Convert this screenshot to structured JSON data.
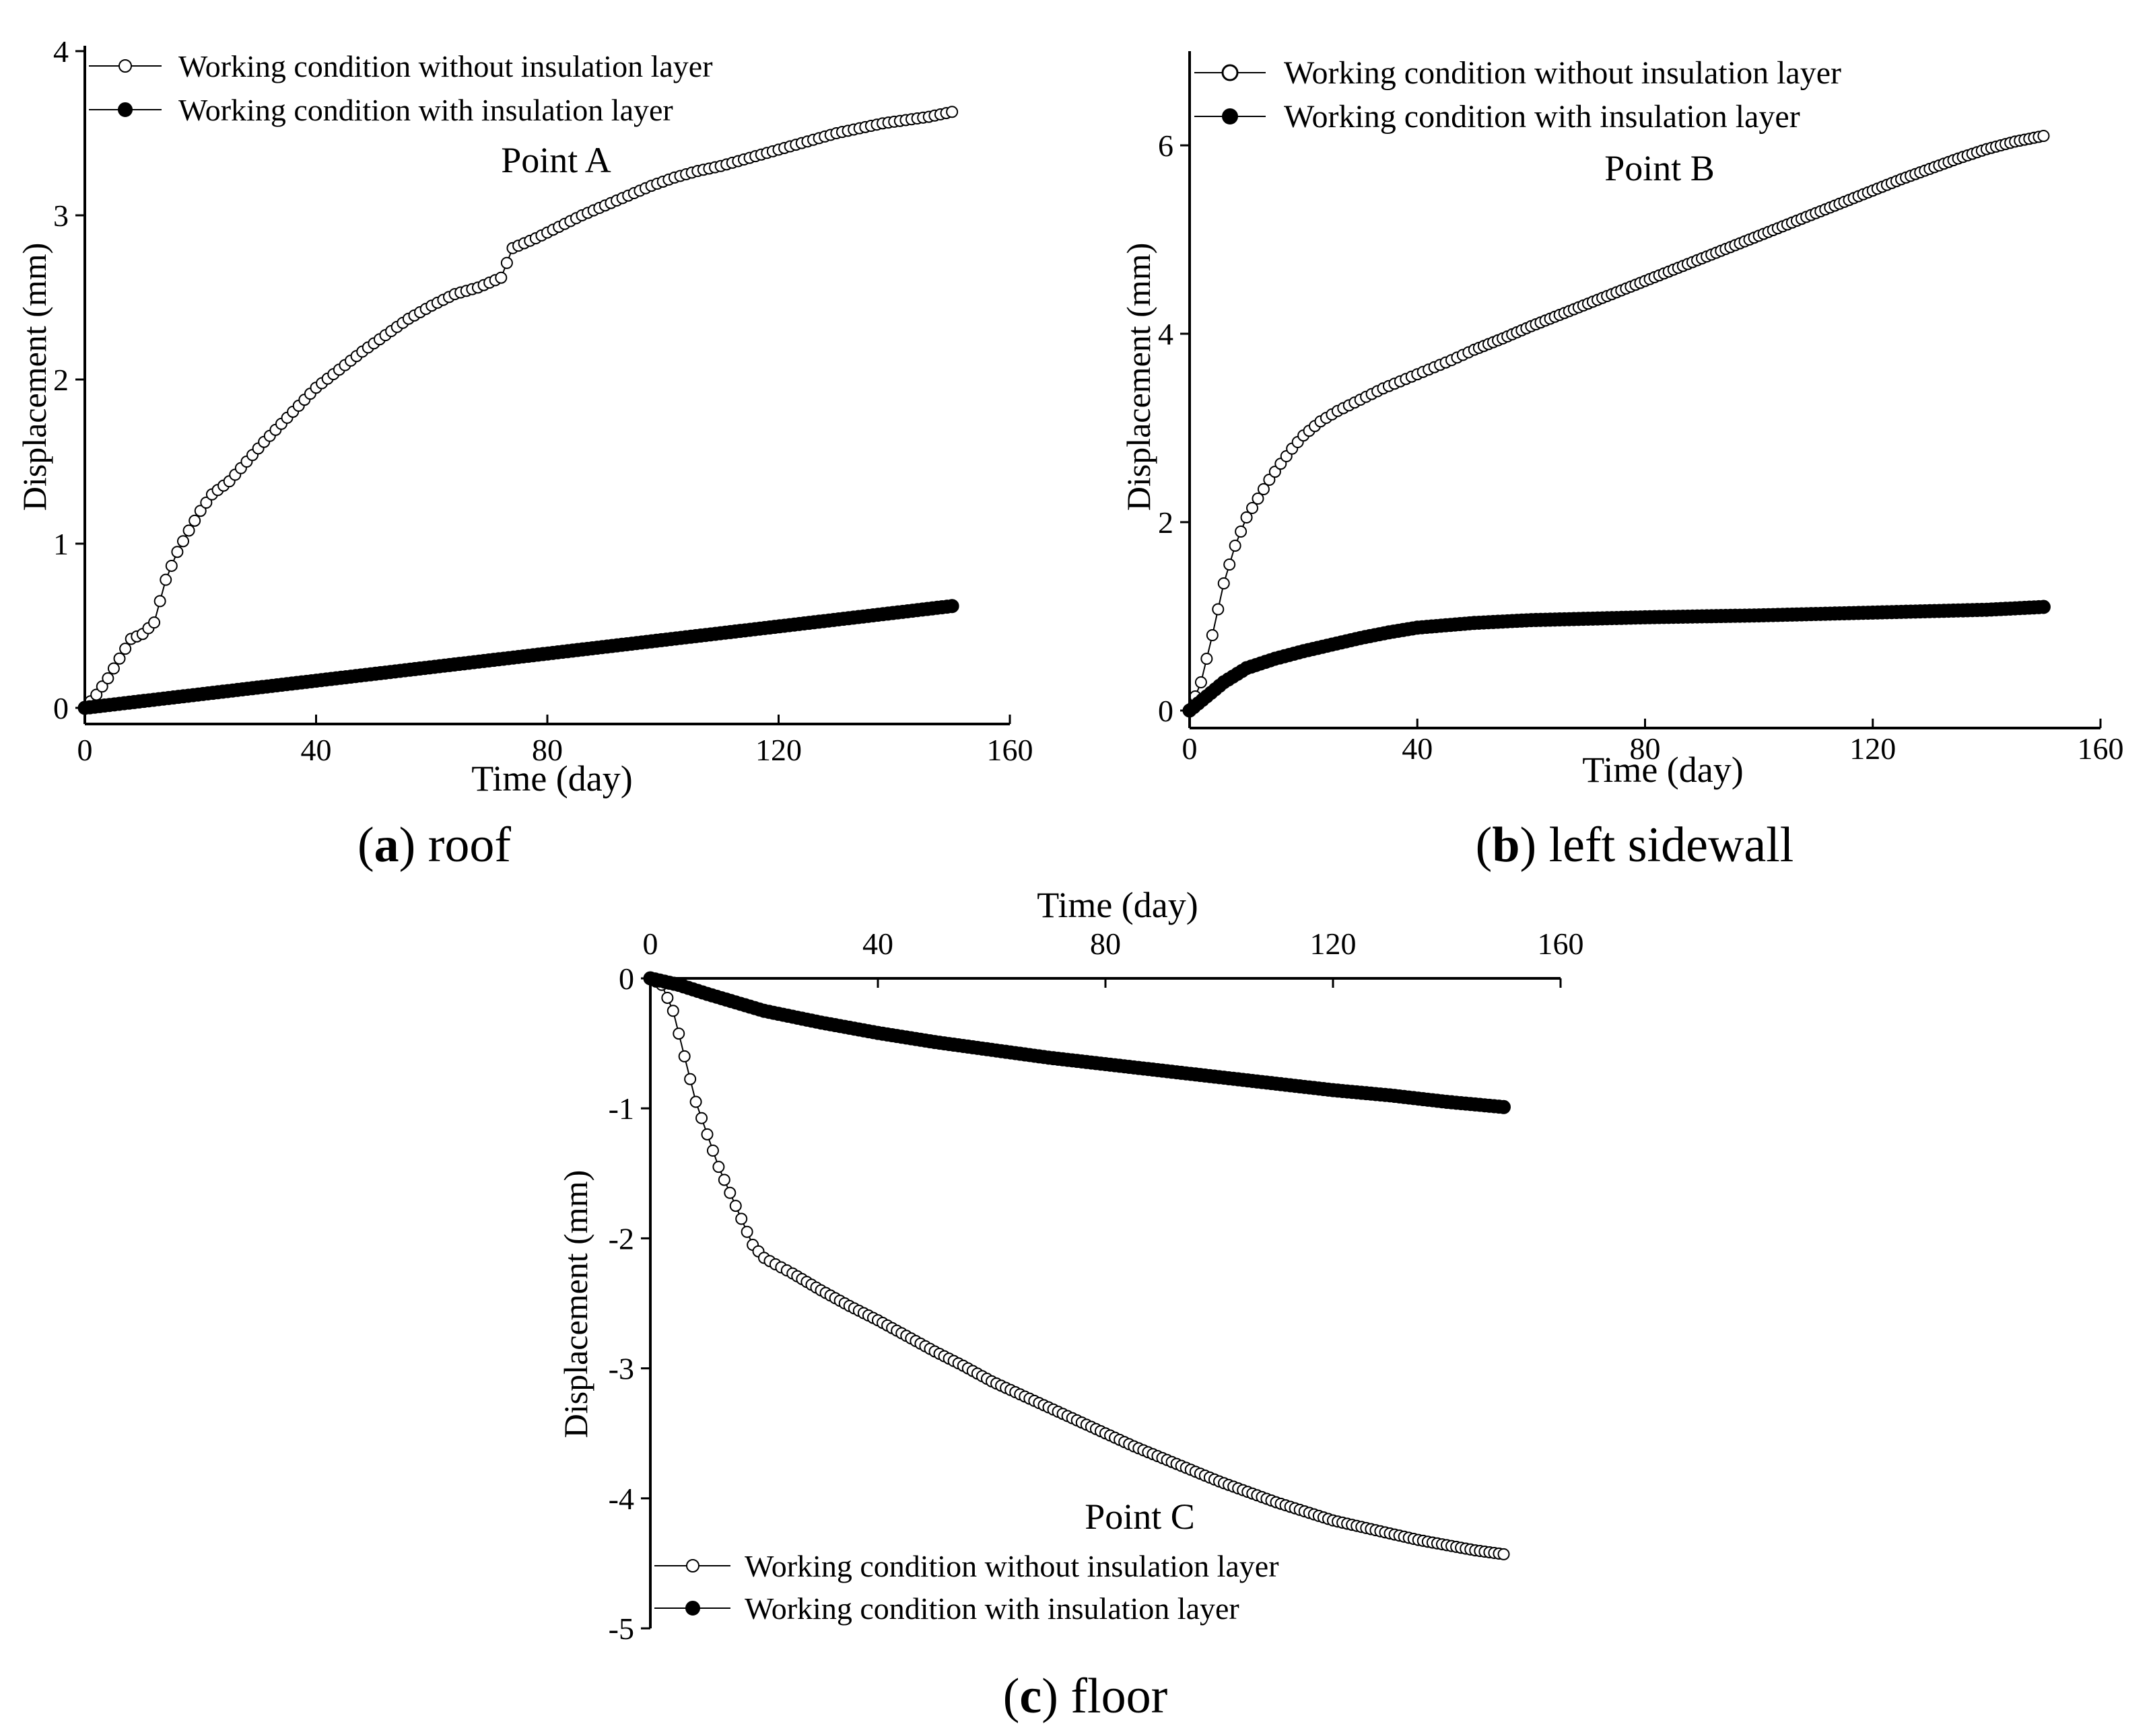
{
  "chart_data": [
    {
      "id": "a",
      "type": "scatter",
      "panel_letter": "(a)",
      "caption_prefix": "(",
      "caption_letter": "a",
      "caption_rest": ") roof",
      "point_label": "Point A",
      "xlabel": "Time (day)",
      "ylabel": "Displacement (mm)",
      "xlim": [
        0,
        160
      ],
      "ylim": [
        0,
        4
      ],
      "xticks": [
        0,
        40,
        80,
        120,
        160
      ],
      "yticks": [
        0,
        1,
        2,
        3,
        4
      ],
      "x_axis_position": "bottom",
      "legend_position": "top-left",
      "legend": [
        "Working condition without insulation layer",
        "Working condition with insulation layer"
      ],
      "series": [
        {
          "name": "Working condition without insulation layer",
          "marker": "open-circle",
          "x": [
            0,
            2,
            4,
            6,
            8,
            10,
            12,
            14,
            16,
            18,
            20,
            22,
            25,
            28,
            31,
            34,
            37,
            40,
            44,
            48,
            52,
            56,
            60,
            64,
            68,
            72,
            74,
            78,
            82,
            86,
            90,
            94,
            98,
            102,
            106,
            110,
            114,
            118,
            122,
            126,
            130,
            134,
            138,
            142,
            146,
            150
          ],
          "y": [
            0,
            0.08,
            0.18,
            0.3,
            0.42,
            0.45,
            0.52,
            0.78,
            0.95,
            1.08,
            1.2,
            1.3,
            1.38,
            1.5,
            1.62,
            1.73,
            1.84,
            1.95,
            2.06,
            2.17,
            2.27,
            2.37,
            2.45,
            2.52,
            2.56,
            2.62,
            2.8,
            2.86,
            2.93,
            3.0,
            3.06,
            3.12,
            3.18,
            3.23,
            3.27,
            3.3,
            3.34,
            3.38,
            3.42,
            3.46,
            3.5,
            3.53,
            3.56,
            3.58,
            3.6,
            3.63
          ]
        },
        {
          "name": "Working condition with insulation layer",
          "marker": "filled-circle",
          "x": [
            0,
            150
          ],
          "y": [
            0,
            0.62
          ]
        }
      ]
    },
    {
      "id": "b",
      "type": "scatter",
      "panel_letter": "(b)",
      "caption_prefix": "(",
      "caption_letter": "b",
      "caption_rest": ") left sidewall",
      "point_label": "Point B",
      "xlabel": "Time (day)",
      "ylabel": "Displacement (mm)",
      "xlim": [
        0,
        160
      ],
      "ylim": [
        0,
        7
      ],
      "xticks": [
        0,
        40,
        80,
        120,
        160
      ],
      "yticks": [
        0,
        2,
        4,
        6
      ],
      "x_axis_position": "bottom",
      "legend_position": "top-left",
      "legend": [
        "Working condition without insulation layer",
        "Working condition with insulation layer"
      ],
      "series": [
        {
          "name": "Working condition without insulation layer",
          "marker": "open-circle",
          "x": [
            0,
            2,
            4,
            6,
            8,
            10,
            12,
            14,
            16,
            18,
            20,
            23,
            26,
            30,
            34,
            38,
            42,
            46,
            50,
            55,
            60,
            65,
            70,
            75,
            80,
            85,
            90,
            95,
            100,
            105,
            110,
            115,
            120,
            125,
            130,
            135,
            140,
            145,
            150
          ],
          "y": [
            0,
            0.3,
            0.8,
            1.35,
            1.75,
            2.05,
            2.25,
            2.45,
            2.62,
            2.78,
            2.92,
            3.07,
            3.18,
            3.3,
            3.42,
            3.52,
            3.62,
            3.72,
            3.83,
            3.95,
            4.08,
            4.2,
            4.32,
            4.44,
            4.56,
            4.68,
            4.8,
            4.92,
            5.04,
            5.16,
            5.28,
            5.4,
            5.52,
            5.64,
            5.75,
            5.86,
            5.96,
            6.04,
            6.1
          ]
        },
        {
          "name": "Working condition with insulation layer",
          "marker": "filled-circle",
          "x": [
            0,
            3,
            6,
            10,
            15,
            20,
            25,
            30,
            35,
            40,
            50,
            60,
            80,
            100,
            120,
            140,
            150
          ],
          "y": [
            0,
            0.15,
            0.3,
            0.45,
            0.55,
            0.63,
            0.7,
            0.77,
            0.83,
            0.88,
            0.93,
            0.96,
            0.99,
            1.01,
            1.04,
            1.07,
            1.1
          ]
        }
      ]
    },
    {
      "id": "c",
      "type": "scatter",
      "panel_letter": "(c)",
      "caption_prefix": "(",
      "caption_letter": "c",
      "caption_rest": ") floor",
      "point_label": "Point C",
      "xlabel": "Time (day)",
      "ylabel": "Displacement (mm)",
      "xlim": [
        0,
        160
      ],
      "ylim": [
        -5,
        0
      ],
      "xticks": [
        0,
        40,
        80,
        120,
        160
      ],
      "yticks": [
        0,
        -1,
        -2,
        -3,
        -4,
        -5
      ],
      "x_axis_position": "top",
      "legend_position": "bottom-left",
      "legend": [
        "Working condition without insulation layer",
        "Working condition with insulation layer"
      ],
      "series": [
        {
          "name": "Working condition without insulation layer",
          "marker": "open-circle",
          "x": [
            0,
            2,
            4,
            6,
            8,
            10,
            12,
            14,
            16,
            18,
            20,
            22,
            25,
            30,
            35,
            40,
            45,
            50,
            55,
            60,
            65,
            70,
            75,
            80,
            85,
            90,
            95,
            100,
            105,
            110,
            115,
            120,
            125,
            130,
            135,
            140,
            145,
            150
          ],
          "y": [
            0,
            -0.05,
            -0.25,
            -0.6,
            -0.95,
            -1.2,
            -1.45,
            -1.65,
            -1.85,
            -2.05,
            -2.15,
            -2.2,
            -2.27,
            -2.4,
            -2.52,
            -2.63,
            -2.75,
            -2.87,
            -2.98,
            -3.1,
            -3.2,
            -3.3,
            -3.4,
            -3.5,
            -3.6,
            -3.69,
            -3.78,
            -3.87,
            -3.95,
            -4.03,
            -4.1,
            -4.17,
            -4.22,
            -4.27,
            -4.32,
            -4.36,
            -4.4,
            -4.43
          ]
        },
        {
          "name": "Working condition with insulation layer",
          "marker": "filled-circle",
          "x": [
            0,
            5,
            10,
            20,
            30,
            40,
            50,
            60,
            70,
            80,
            90,
            100,
            110,
            120,
            130,
            140,
            150
          ],
          "y": [
            0,
            -0.05,
            -0.12,
            -0.25,
            -0.34,
            -0.42,
            -0.49,
            -0.55,
            -0.61,
            -0.66,
            -0.71,
            -0.76,
            -0.81,
            -0.86,
            -0.9,
            -0.95,
            -0.99
          ]
        }
      ]
    }
  ]
}
